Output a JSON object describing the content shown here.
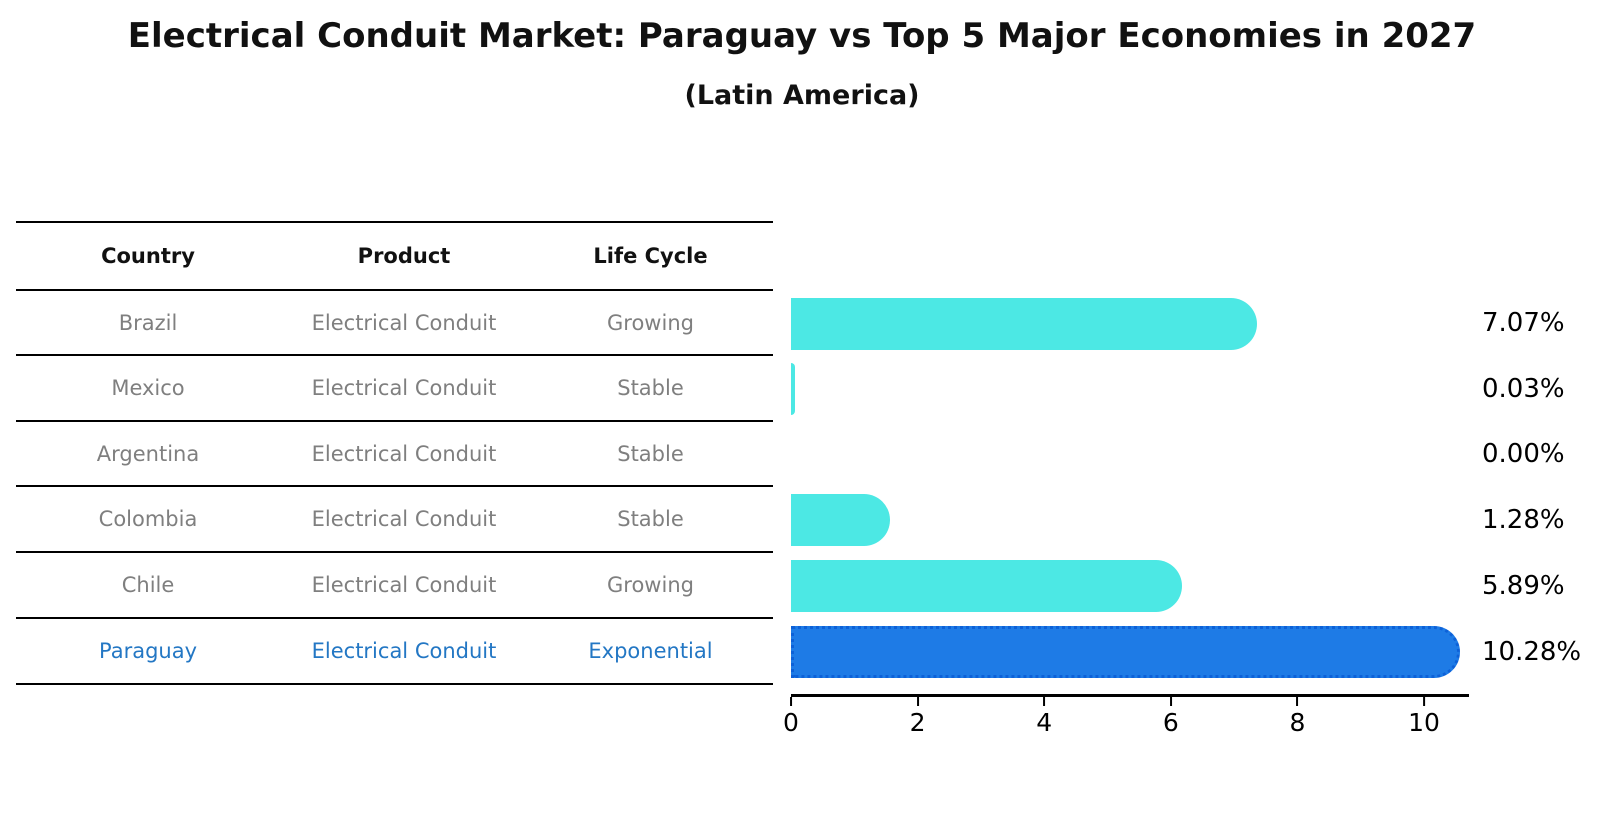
{
  "title": "Electrical Conduit Market: Paraguay vs Top 5 Major Economies in 2027",
  "subtitle": "(Latin America)",
  "table": {
    "headers": [
      "Country",
      "Product",
      "Life Cycle"
    ],
    "rows": [
      {
        "country": "Brazil",
        "product": "Electrical Conduit",
        "life_cycle": "Growing"
      },
      {
        "country": "Mexico",
        "product": "Electrical Conduit",
        "life_cycle": "Stable"
      },
      {
        "country": "Argentina",
        "product": "Electrical Conduit",
        "life_cycle": "Stable"
      },
      {
        "country": "Colombia",
        "product": "Electrical Conduit",
        "life_cycle": "Stable"
      },
      {
        "country": "Chile",
        "product": "Electrical Conduit",
        "life_cycle": "Growing"
      },
      {
        "country": "Paraguay",
        "product": "Electrical Conduit",
        "life_cycle": "Exponential"
      }
    ],
    "highlight_row": 5
  },
  "chart_data": {
    "type": "bar",
    "orientation": "horizontal",
    "title": "Electrical Conduit Market: Paraguay vs Top 5 Major Economies in 2027",
    "subtitle": "(Latin America)",
    "categories": [
      "Brazil",
      "Mexico",
      "Argentina",
      "Colombia",
      "Chile",
      "Paraguay"
    ],
    "values": [
      7.07,
      0.03,
      0.0,
      1.28,
      5.89,
      10.28
    ],
    "value_labels": [
      "7.07%",
      "0.03%",
      "0.00%",
      "1.28%",
      "5.89%",
      "10.28%"
    ],
    "x_ticks": [
      "0",
      "2",
      "4",
      "6",
      "8",
      "10"
    ],
    "xlim": [
      0,
      10.79
    ],
    "xlabel": "",
    "ylabel": "",
    "grid": "off",
    "legend": "none",
    "highlight_index": 5,
    "bar_color": "#4ce8e4",
    "highlight_bar_color": "#1e7be6",
    "highlight_edge_color": "#0d61d8",
    "highlight_text_color": "#2377c4",
    "row_text_color": "#7f7f7f",
    "axis_color": "#000000"
  }
}
